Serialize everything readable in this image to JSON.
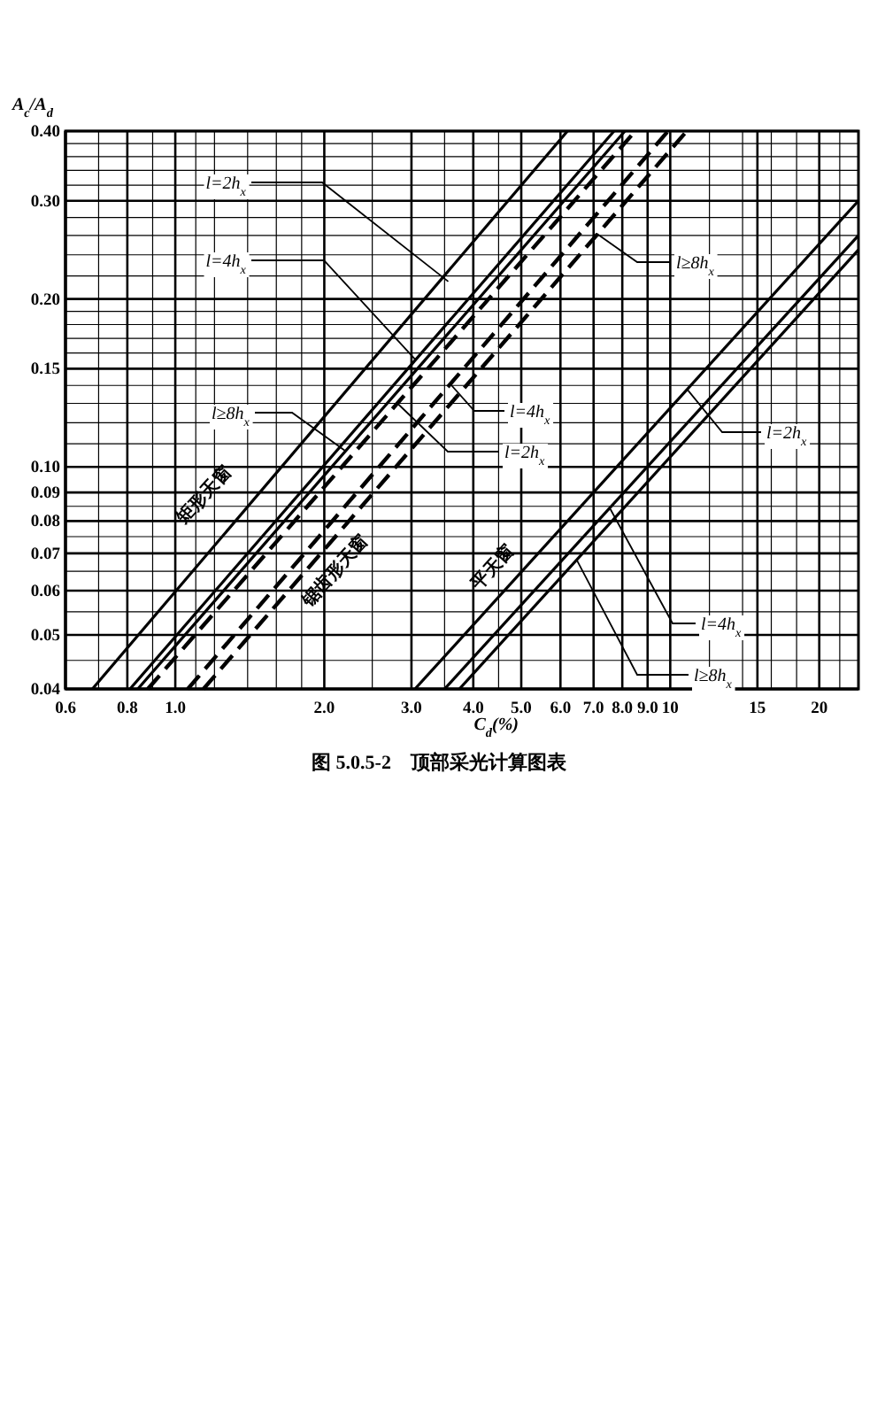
{
  "chart_data": {
    "type": "line",
    "title": "图 5.0.5-2　顶部采光计算图表",
    "xlabel": "C$_{d}$(%)",
    "ylabel": "A$_{c}$/A$_{d}$",
    "log": "xy",
    "grid": true,
    "line_style": "solid",
    "xlim": [
      0.6,
      24
    ],
    "ylim": [
      0.04,
      0.4
    ],
    "xticks": [
      0.6,
      {
        "value": 0.7,
        "label": null
      },
      0.8,
      {
        "value": 0.9,
        "label": null
      },
      {
        "value": 1,
        "label": "1.0"
      },
      {
        "value": 1.1,
        "label": null
      },
      {
        "value": 1.2,
        "label": null
      },
      {
        "value": 1.4,
        "label": null
      },
      {
        "value": 1.6,
        "label": null
      },
      {
        "value": 1.8,
        "label": null
      },
      {
        "value": 2,
        "label": "2.0"
      },
      {
        "value": 2.5,
        "label": null
      },
      {
        "value": 3,
        "label": "3.0"
      },
      {
        "value": 3.5,
        "label": null
      },
      {
        "value": 4,
        "label": "4.0"
      },
      {
        "value": 4.5,
        "label": null
      },
      {
        "value": 5,
        "label": "5.0"
      },
      {
        "value": 6,
        "label": "6.0"
      },
      {
        "value": 7,
        "label": "7.0"
      },
      {
        "value": 8,
        "label": "8.0"
      },
      {
        "value": 9,
        "label": "9.0"
      },
      10,
      {
        "value": 12,
        "label": null
      },
      {
        "value": 14,
        "label": null
      },
      15,
      {
        "value": 16,
        "label": null
      },
      {
        "value": 18,
        "label": null
      },
      20,
      {
        "value": 22,
        "label": null
      }
    ],
    "yticks": [
      {
        "value": 0.04,
        "label": "0.04"
      },
      {
        "value": 0.045,
        "label": null
      },
      0.05,
      {
        "value": 0.055,
        "label": null
      },
      0.06,
      {
        "value": 0.065,
        "label": null
      },
      0.07,
      {
        "value": 0.075,
        "label": null
      },
      0.08,
      {
        "value": 0.085,
        "label": null
      },
      0.09,
      {
        "value": 0.1,
        "label": "0.10"
      },
      {
        "value": 0.11,
        "label": null
      },
      {
        "value": 0.12,
        "label": null
      },
      {
        "value": 0.13,
        "label": null
      },
      {
        "value": 0.14,
        "label": null
      },
      0.15,
      {
        "value": 0.16,
        "label": null
      },
      {
        "value": 0.17,
        "label": null
      },
      {
        "value": 0.18,
        "label": null
      },
      {
        "value": 0.19,
        "label": null
      },
      {
        "value": 0.2,
        "label": "0.20"
      },
      {
        "value": 0.22,
        "label": null
      },
      {
        "value": 0.24,
        "label": null
      },
      {
        "value": 0.26,
        "label": null
      },
      {
        "value": 0.28,
        "label": null
      },
      {
        "value": 0.3,
        "label": "0.30"
      },
      {
        "value": 0.32,
        "label": null
      },
      {
        "value": 0.34,
        "label": null
      },
      {
        "value": 0.36,
        "label": null
      },
      {
        "value": 0.38,
        "label": null
      },
      {
        "value": 0.4,
        "label": "0.40"
      }
    ],
    "series": [
      {
        "color": "#000000",
        "x": [
          0.68,
          6.2
        ],
        "values": [
          0.04,
          0.4
        ]
      },
      {
        "color": "#000000",
        "x": [
          0.81,
          7.7
        ],
        "values": [
          0.04,
          0.4
        ]
      },
      {
        "color": "#000000",
        "x": [
          0.84,
          8.1
        ],
        "values": [
          0.04,
          0.4
        ]
      },
      {
        "color": "#000000",
        "line_style": "dashed",
        "x": [
          0.88,
          8.5
        ],
        "values": [
          0.04,
          0.4
        ]
      },
      {
        "color": "#000000",
        "line_style": "dashed",
        "x": [
          1.06,
          9.9
        ],
        "values": [
          0.04,
          0.4
        ]
      },
      {
        "color": "#000000",
        "line_style": "dashed",
        "x": [
          1.14,
          10.8
        ],
        "values": [
          0.04,
          0.4
        ]
      },
      {
        "color": "#000000",
        "x": [
          3.05,
          24
        ],
        "values": [
          0.04,
          0.3
        ]
      },
      {
        "color": "#000000",
        "x": [
          3.5,
          24
        ],
        "values": [
          0.04,
          0.26
        ]
      },
      {
        "color": "#000000",
        "x": [
          3.75,
          24
        ],
        "values": [
          0.04,
          0.245
        ]
      }
    ],
    "annotations": [
      "矩形天窗",
      "锯齿形天窗",
      "平天窗",
      {
        "text": "l=2h$_{x}$",
        "x": 3.56,
        "y": 0.215
      },
      {
        "text": "l=4h$_{x}$",
        "x": 3.05,
        "y": 0.156
      },
      {
        "text": "l≥8h$_{x}$",
        "x": 2.2,
        "y": 0.107
      },
      {
        "text": "l=2h$_{x}$",
        "x": 2.81,
        "y": 0.13
      },
      {
        "text": "l=4h$_{x}$",
        "x": 3.59,
        "y": 0.141
      },
      {
        "text": "l≥8h$_{x}$",
        "x": 7.1,
        "y": 0.262
      },
      {
        "text": "l=2h$_{x}$",
        "x": 10.8,
        "y": 0.138
      },
      {
        "text": "l=4h$_{x}$",
        "x": 7.57,
        "y": 0.084
      },
      {
        "text": "l≥8h$_{x}$",
        "x": 6.48,
        "y": 0.068
      }
    ]
  }
}
